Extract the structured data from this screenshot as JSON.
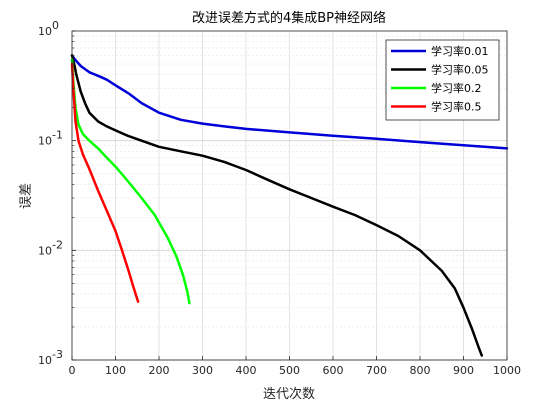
{
  "chart_data": {
    "type": "line",
    "title": "改进误差方式的4集成BP神经网络",
    "xlabel": "迭代次数",
    "ylabel": "误差",
    "xlim": [
      0,
      1000
    ],
    "ylim": [
      0.001,
      1
    ],
    "yscale": "log",
    "grid": true,
    "legend_position": "top-right",
    "x_ticks": [
      0,
      100,
      200,
      300,
      400,
      500,
      600,
      700,
      800,
      900,
      1000
    ],
    "y_ticks": [
      {
        "value": 0.001,
        "base": "10",
        "exp": "-3"
      },
      {
        "value": 0.01,
        "base": "10",
        "exp": "-2"
      },
      {
        "value": 0.1,
        "base": "10",
        "exp": "-1"
      },
      {
        "value": 1,
        "base": "10",
        "exp": "0"
      }
    ],
    "series": [
      {
        "name": "学习率0.01",
        "color": "#0000d8",
        "x": [
          0,
          5,
          20,
          40,
          60,
          80,
          100,
          130,
          160,
          200,
          250,
          300,
          350,
          400,
          500,
          600,
          700,
          800,
          900,
          1000
        ],
        "y": [
          0.6,
          0.56,
          0.48,
          0.42,
          0.39,
          0.36,
          0.32,
          0.27,
          0.22,
          0.18,
          0.155,
          0.143,
          0.135,
          0.128,
          0.119,
          0.111,
          0.104,
          0.097,
          0.091,
          0.085
        ]
      },
      {
        "name": "学习率0.05",
        "color": "#000000",
        "x": [
          0,
          5,
          10,
          20,
          30,
          40,
          60,
          80,
          100,
          130,
          160,
          200,
          250,
          300,
          350,
          400,
          450,
          500,
          550,
          600,
          650,
          700,
          750,
          800,
          850,
          880,
          900,
          920,
          935,
          942
        ],
        "y": [
          0.6,
          0.5,
          0.4,
          0.28,
          0.22,
          0.18,
          0.15,
          0.135,
          0.124,
          0.11,
          0.1,
          0.088,
          0.08,
          0.073,
          0.064,
          0.054,
          0.044,
          0.036,
          0.03,
          0.025,
          0.021,
          0.017,
          0.0135,
          0.01,
          0.0065,
          0.0045,
          0.003,
          0.0019,
          0.0013,
          0.0011
        ]
      },
      {
        "name": "学习率0.2",
        "color": "#00ff00",
        "x": [
          0,
          3,
          8,
          15,
          25,
          40,
          60,
          80,
          100,
          130,
          160,
          190,
          220,
          240,
          255,
          265,
          270
        ],
        "y": [
          0.55,
          0.35,
          0.2,
          0.14,
          0.115,
          0.1,
          0.085,
          0.07,
          0.058,
          0.042,
          0.03,
          0.021,
          0.013,
          0.0088,
          0.006,
          0.0042,
          0.0033
        ]
      },
      {
        "name": "学习率0.5",
        "color": "#ff0000",
        "x": [
          0,
          3,
          8,
          15,
          25,
          40,
          60,
          80,
          100,
          115,
          130,
          140,
          148,
          152
        ],
        "y": [
          0.5,
          0.3,
          0.15,
          0.1,
          0.075,
          0.055,
          0.035,
          0.023,
          0.015,
          0.01,
          0.0065,
          0.0048,
          0.0038,
          0.0034
        ]
      }
    ]
  }
}
